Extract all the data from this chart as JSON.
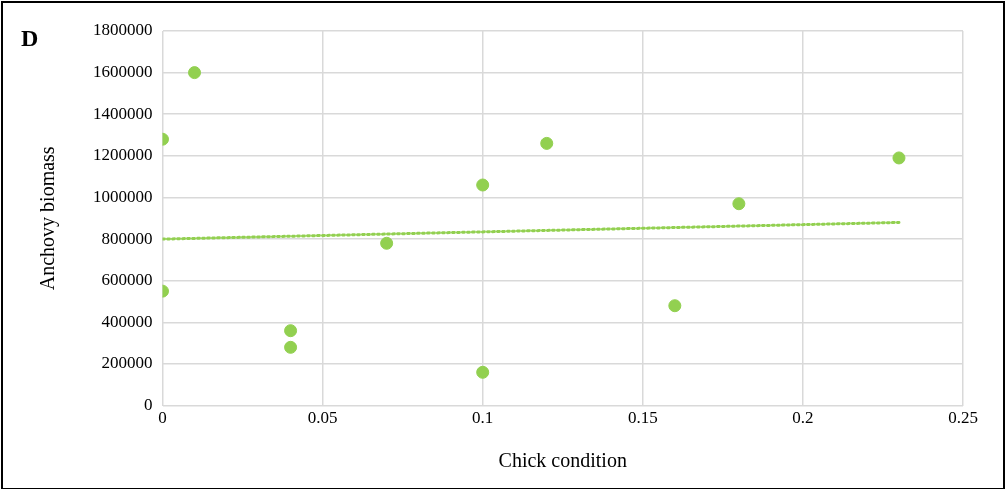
{
  "chart_data": {
    "type": "scatter",
    "xlabel": "Chick condition",
    "ylabel": "Anchovy biomass",
    "annotations": [
      "D"
    ],
    "xlim": [
      0,
      0.25
    ],
    "xticks": [
      0,
      0.05,
      0.1,
      0.15,
      0.2,
      0.25
    ],
    "ylim": [
      0,
      1800000
    ],
    "yticks": [
      0,
      200000,
      400000,
      600000,
      800000,
      1000000,
      1200000,
      1400000,
      1600000,
      1800000
    ],
    "grid": true,
    "legend": false,
    "marker": "circle",
    "series": [
      {
        "color": "#92d050",
        "x": [
          0,
          0.01,
          0,
          0.04,
          0.04,
          0.07,
          0.1,
          0.1,
          0.12,
          0.16,
          0.18,
          0.23
        ],
        "values": [
          1280000,
          1600000,
          550000,
          360000,
          280000,
          780000,
          1060000,
          160000,
          1260000,
          480000,
          970000,
          1190000
        ]
      },
      {
        "type": "line",
        "line_style": "dotted",
        "marker": "none",
        "color": "#92d050",
        "x": [
          0,
          0.23
        ],
        "values": [
          800000,
          880000
        ]
      }
    ]
  }
}
